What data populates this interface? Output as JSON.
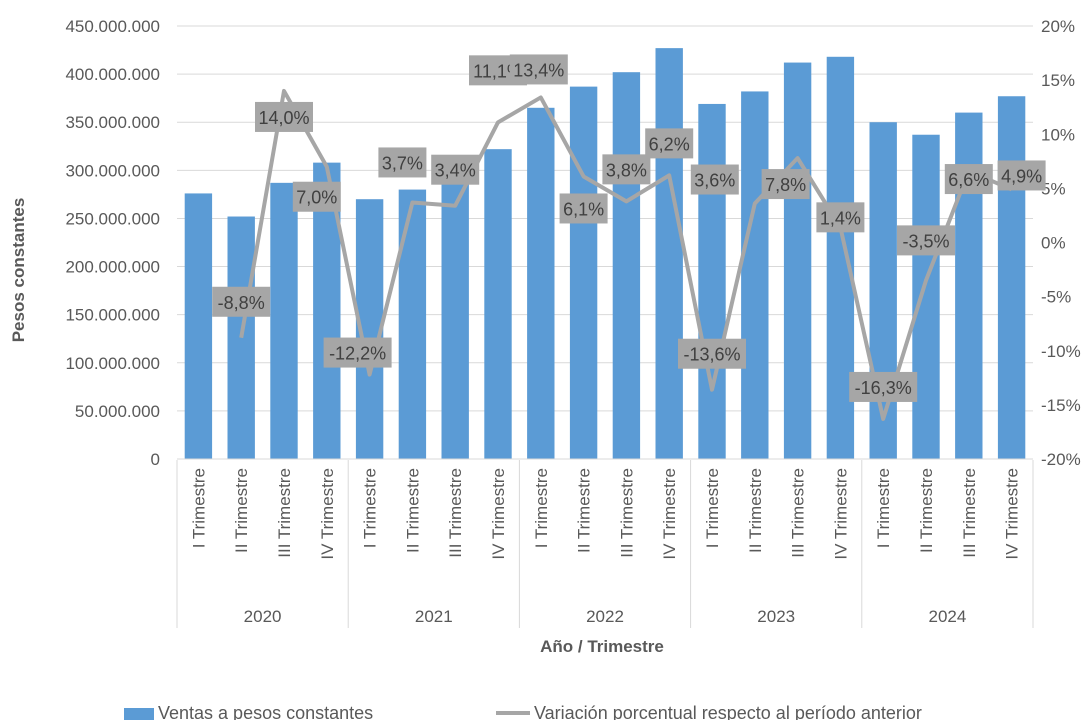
{
  "chart_data": {
    "type": "bar+line",
    "title": "",
    "xlabel": "Año / Trimestre",
    "ylabel": "Pesos constantes",
    "ylim": [
      0,
      450000000
    ],
    "y2lim": [
      -20,
      20
    ],
    "y_ticks": [
      "0",
      "50.000.000",
      "100.000.000",
      "150.000.000",
      "200.000.000",
      "250.000.000",
      "300.000.000",
      "350.000.000",
      "400.000.000",
      "450.000.000"
    ],
    "y2_ticks": [
      "-20%",
      "-15%",
      "-10%",
      "-5%",
      "0%",
      "5%",
      "10%",
      "15%",
      "20%"
    ],
    "colors": {
      "bars": "#5b9bd5",
      "line": "#a6a6a6",
      "label_box": "#a6a6a6"
    },
    "groups": [
      {
        "year": "2020",
        "quarters": [
          "I Trimestre",
          "II Trimestre",
          "III Trimestre",
          "IV Trimestre"
        ]
      },
      {
        "year": "2021",
        "quarters": [
          "I Trimestre",
          "II Trimestre",
          "III Trimestre",
          "IV Trimestre"
        ]
      },
      {
        "year": "2022",
        "quarters": [
          "I Trimestre",
          "II Trimestre",
          "III Trimestre",
          "IV Trimestre"
        ]
      },
      {
        "year": "2023",
        "quarters": [
          "I Trimestre",
          "II Trimestre",
          "III Trimestre",
          "IV Trimestre"
        ]
      },
      {
        "year": "2024",
        "quarters": [
          "I Trimestre",
          "II Trimestre",
          "III Trimestre",
          "IV Trimestre"
        ]
      }
    ],
    "series": [
      {
        "name": "Ventas a pesos constantes",
        "type": "bar",
        "values": [
          276000000,
          252000000,
          287000000,
          308000000,
          270000000,
          280000000,
          290000000,
          322000000,
          365000000,
          387000000,
          402000000,
          427000000,
          369000000,
          382000000,
          412000000,
          418000000,
          350000000,
          337000000,
          360000000,
          377000000
        ]
      },
      {
        "name": "Variación porcentual respecto al período anterior",
        "type": "line",
        "values": [
          null,
          -8.8,
          14.0,
          7.0,
          -12.2,
          3.7,
          3.4,
          11.1,
          13.4,
          6.1,
          3.8,
          6.2,
          -13.6,
          3.6,
          7.8,
          1.4,
          -16.3,
          -3.5,
          6.6,
          4.9
        ],
        "labels": [
          null,
          "-8,8%",
          "14,0%",
          "7,0%",
          "-12,2%",
          "3,7%",
          "3,4%",
          "11,1%",
          "13,4%",
          "6,1%",
          "3,8%",
          "6,2%",
          "-13,6%",
          "3,6%",
          "7,8%",
          "1,4%",
          "-16,3%",
          "-3,5%",
          "6,6%",
          "4,9%"
        ]
      }
    ]
  }
}
